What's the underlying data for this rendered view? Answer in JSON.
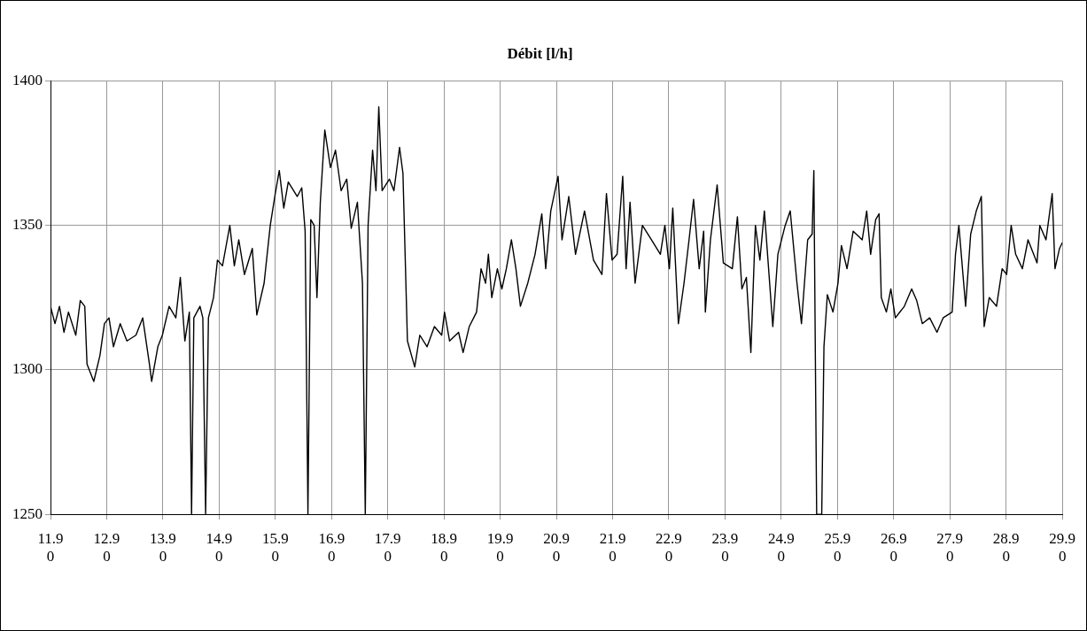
{
  "chart_data": {
    "type": "line",
    "title": "Débit [l/h]",
    "legend": false,
    "marker": "none",
    "line_style": "solid",
    "grid": true,
    "xlim": [
      "--09-11",
      "--09-29"
    ],
    "ylim": [
      1250,
      1400
    ],
    "yticks": [
      1250,
      1300,
      1350,
      1400
    ],
    "xticks": [
      {
        "value": "--09-11",
        "label": "11.9\n0"
      },
      {
        "value": "--09-12",
        "label": "12.9\n0"
      },
      {
        "value": "--09-13",
        "label": "13.9\n0"
      },
      {
        "value": "--09-14",
        "label": "14.9\n0"
      },
      {
        "value": "--09-15",
        "label": "15.9\n0"
      },
      {
        "value": "--09-16",
        "label": "16.9\n0"
      },
      {
        "value": "--09-17",
        "label": "17.9\n0"
      },
      {
        "value": "--09-18",
        "label": "18.9\n0"
      },
      {
        "value": "--09-19",
        "label": "19.9\n0"
      },
      {
        "value": "--09-20",
        "label": "20.9\n0"
      },
      {
        "value": "--09-21",
        "label": "21.9\n0"
      },
      {
        "value": "--09-22",
        "label": "22.9\n0"
      },
      {
        "value": "--09-23",
        "label": "23.9\n0"
      },
      {
        "value": "--09-24",
        "label": "24.9\n0"
      },
      {
        "value": "--09-25",
        "label": "25.9\n0"
      },
      {
        "value": "--09-26",
        "label": "26.9\n0"
      },
      {
        "value": "--09-27",
        "label": "27.9\n0"
      },
      {
        "value": "--09-28",
        "label": "28.9\n0"
      },
      {
        "value": "--09-29",
        "label": "29.9\n0"
      }
    ],
    "series": [
      {
        "color": "#000000",
        "x": [
          "--09-11T00:00",
          "--09-11T01:55",
          "--09-11T03:50",
          "--09-11T05:45",
          "--09-11T07:40",
          "--09-11T10:48",
          "--09-11T12:43",
          "--09-11T14:38",
          "--09-11T15:36",
          "--09-11T18:29",
          "--09-11T21:07",
          "--09-11T23:02",
          "--09-12T00:58",
          "--09-12T02:53",
          "--09-12T05:46",
          "--09-12T08:38",
          "--09-12T12:29",
          "--09-12T15:22",
          "--09-12T18:14",
          "--09-12T19:12",
          "--09-12T21:50",
          "--09-12T23:46",
          "--09-13T02:38",
          "--09-13T05:31",
          "--09-13T07:26",
          "--09-13T09:22",
          "--09-13T11:17",
          "--09-13T12:14",
          "--09-13T13:12",
          "--09-13T15:50",
          "--09-13T17:02",
          "--09-13T18:14",
          "--09-13T19:26",
          "--09-13T21:36",
          "--09-13T23:17",
          "--09-14T01:26",
          "--09-14T04:34",
          "--09-14T06:29",
          "--09-14T08:24",
          "--09-14T10:48",
          "--09-14T14:10",
          "--09-14T16:05",
          "--09-14T19:12",
          "--09-14T21:50",
          "--09-14T23:46",
          "--09-15T01:41",
          "--09-15T03:36",
          "--09-15T05:31",
          "--09-15T09:22",
          "--09-15T11:17",
          "--09-15T12:43",
          "--09-15T13:55",
          "--09-15T15:07",
          "--09-15T16:34",
          "--09-15T17:46",
          "--09-15T19:12",
          "--09-15T21:07",
          "--09-15T23:31",
          "--09-16T01:41",
          "--09-16T04:05",
          "--09-16T06:29",
          "--09-16T08:24",
          "--09-16T11:02",
          "--09-16T13:12",
          "--09-16T14:24",
          "--09-16T15:36",
          "--09-16T17:31",
          "--09-16T18:58",
          "--09-16T20:10",
          "--09-16T21:36",
          "--09-17T00:43",
          "--09-17T02:38",
          "--09-17T05:02",
          "--09-17T06:29",
          "--09-17T08:24",
          "--09-17T11:31",
          "--09-17T13:41",
          "--09-17T16:48",
          "--09-17T19:55",
          "--09-17T23:02",
          "--09-18T00:14",
          "--09-18T02:24",
          "--09-18T06:14",
          "--09-18T08:10",
          "--09-18T10:48",
          "--09-18T13:55",
          "--09-18T15:50",
          "--09-18T17:46",
          "--09-18T18:58",
          "--09-18T20:24",
          "--09-18T22:48",
          "--09-19T00:43",
          "--09-19T02:38",
          "--09-19T04:48",
          "--09-19T06:43",
          "--09-19T08:38",
          "--09-19T11:46",
          "--09-19T14:53",
          "--09-19T17:46",
          "--09-19T19:26",
          "--09-19T21:36",
          "--09-20T00:43",
          "--09-20T02:24",
          "--09-20T05:17",
          "--09-20T08:10",
          "--09-20T12:00",
          "--09-20T15:50",
          "--09-20T19:26",
          "--09-20T21:22",
          "--09-20T23:46",
          "--09-21T01:55",
          "--09-21T04:19",
          "--09-21T05:46",
          "--09-21T07:26",
          "--09-21T09:36",
          "--09-21T12:43",
          "--09-21T16:34",
          "--09-21T20:24",
          "--09-21T22:19",
          "--09-22T00:14",
          "--09-22T01:41",
          "--09-22T04:05",
          "--09-22T06:29",
          "--09-22T08:38",
          "--09-22T10:34",
          "--09-22T12:58",
          "--09-22T14:53",
          "--09-22T15:36",
          "--09-22T17:46",
          "--09-22T20:38",
          "--09-22T23:17",
          "--09-23T03:07",
          "--09-23T05:17",
          "--09-23T07:12",
          "--09-23T09:07",
          "--09-23T11:02",
          "--09-23T12:58",
          "--09-23T14:53",
          "--09-23T16:48",
          "--09-23T20:24",
          "--09-23T22:34",
          "--09-24T01:41",
          "--09-24T03:50",
          "--09-24T06:43",
          "--09-24T08:38",
          "--09-24T11:17",
          "--09-24T13:12",
          "--09-24T13:55",
          "--09-24T15:07",
          "--09-24T17:17",
          "--09-24T18:14",
          "--09-24T19:41",
          "--09-24T22:05",
          "--09-25T00:14",
          "--09-25T01:41",
          "--09-25T04:05",
          "--09-25T06:43",
          "--09-25T10:34",
          "--09-25T12:29",
          "--09-25T14:10",
          "--09-25T16:19",
          "--09-25T17:46",
          "--09-25T18:43",
          "--09-25T20:53",
          "--09-25T22:48",
          "--09-26T00:43",
          "--09-26T04:34",
          "--09-26T07:41",
          "--09-26T09:50",
          "--09-26T12:14",
          "--09-26T15:22",
          "--09-26T18:29",
          "--09-26T21:07",
          "--09-27T00:58",
          "--09-27T02:24",
          "--09-27T03:50",
          "--09-27T06:43",
          "--09-27T08:53",
          "--09-27T11:17",
          "--09-27T13:26",
          "--09-27T14:38",
          "--09-27T16:48",
          "--09-27T19:55",
          "--09-27T22:19",
          "--09-28T00:14",
          "--09-28T02:10",
          "--09-28T04:05",
          "--09-28T06:58",
          "--09-28T09:22",
          "--09-28T13:12",
          "--09-28T14:24",
          "--09-28T17:02",
          "--09-28T19:41",
          "--09-28T20:53",
          "--09-28T22:48",
          "--09-29T00:00"
        ],
        "values": [
          1322,
          1316,
          1322,
          1313,
          1320,
          1312,
          1324,
          1322,
          1302,
          1296,
          1305,
          1316,
          1318,
          1308,
          1316,
          1310,
          1312,
          1318,
          1302,
          1296,
          1308,
          1312,
          1322,
          1318,
          1332,
          1310,
          1320,
          1250,
          1318,
          1322,
          1318,
          1250,
          1318,
          1325,
          1338,
          1336,
          1350,
          1336,
          1345,
          1333,
          1342,
          1319,
          1330,
          1350,
          1360,
          1369,
          1356,
          1365,
          1360,
          1363,
          1348,
          1250,
          1352,
          1350,
          1325,
          1358,
          1383,
          1370,
          1376,
          1362,
          1366,
          1349,
          1358,
          1330,
          1250,
          1350,
          1376,
          1362,
          1391,
          1362,
          1366,
          1362,
          1377,
          1368,
          1310,
          1301,
          1312,
          1308,
          1315,
          1312,
          1320,
          1310,
          1313,
          1306,
          1315,
          1320,
          1335,
          1330,
          1340,
          1325,
          1335,
          1328,
          1335,
          1345,
          1335,
          1322,
          1330,
          1340,
          1354,
          1335,
          1355,
          1367,
          1345,
          1360,
          1340,
          1355,
          1338,
          1333,
          1361,
          1338,
          1340,
          1367,
          1335,
          1358,
          1330,
          1350,
          1345,
          1340,
          1350,
          1335,
          1356,
          1316,
          1330,
          1345,
          1359,
          1335,
          1348,
          1320,
          1345,
          1364,
          1337,
          1335,
          1353,
          1328,
          1332,
          1306,
          1350,
          1338,
          1355,
          1315,
          1340,
          1350,
          1355,
          1330,
          1316,
          1345,
          1347,
          1369,
          1250,
          1250,
          1308,
          1326,
          1320,
          1330,
          1343,
          1335,
          1348,
          1345,
          1355,
          1340,
          1352,
          1354,
          1325,
          1320,
          1328,
          1318,
          1322,
          1328,
          1324,
          1316,
          1318,
          1313,
          1318,
          1320,
          1340,
          1350,
          1322,
          1347,
          1355,
          1360,
          1315,
          1325,
          1322,
          1335,
          1333,
          1350,
          1340,
          1335,
          1345,
          1337,
          1350,
          1345,
          1361,
          1335,
          1342,
          1344
        ]
      }
    ]
  }
}
